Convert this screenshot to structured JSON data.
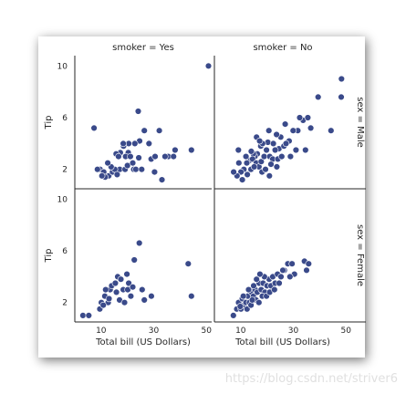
{
  "watermark": "https://blog.csdn.net/striver6",
  "colors": {
    "point": "#3a4a8a",
    "point_edge": "#ffffff",
    "axis": "#262626",
    "shadow": "#9a9a9a",
    "panel_bg": "#ffffff"
  },
  "chart_data": {
    "type": "scatter",
    "grid": false,
    "x_ticks": [
      10,
      30,
      50
    ],
    "y_ticks": [
      2,
      6,
      10
    ],
    "xlim": [
      0,
      52
    ],
    "ylim": [
      0.5,
      10.8
    ],
    "col_titles": [
      "smoker = Yes",
      "smoker = No"
    ],
    "row_titles": [
      "sex = Male",
      "sex = Female"
    ],
    "xlabel": "Total bill (US Dollars)",
    "ylabel": "Tip",
    "panels": [
      {
        "row": 0,
        "col": 0,
        "points": [
          [
            50.8,
            10.0
          ],
          [
            7.3,
            5.2
          ],
          [
            24.1,
            6.5
          ],
          [
            26.4,
            5.0
          ],
          [
            32.1,
            5.0
          ],
          [
            44.3,
            3.5
          ],
          [
            20.3,
            3.3
          ],
          [
            28.2,
            4.0
          ],
          [
            24.6,
            4.2
          ],
          [
            22.8,
            4.0
          ],
          [
            20.5,
            4.0
          ],
          [
            18.5,
            3.8
          ],
          [
            17.3,
            3.3
          ],
          [
            15.7,
            3.2
          ],
          [
            18.4,
            4.0
          ],
          [
            17.1,
            2.0
          ],
          [
            19.1,
            2.0
          ],
          [
            22.4,
            2.0
          ],
          [
            23.2,
            2.0
          ],
          [
            20.0,
            2.3
          ],
          [
            24.3,
            2.9
          ],
          [
            29.0,
            2.8
          ],
          [
            33.1,
            1.2
          ],
          [
            35.5,
            3.0
          ],
          [
            37.5,
            3.0
          ],
          [
            34.3,
            3.0
          ],
          [
            38.1,
            3.5
          ],
          [
            30.3,
            1.8
          ],
          [
            25.4,
            2.0
          ],
          [
            9.6,
            2.0
          ],
          [
            11.0,
            1.8
          ],
          [
            12.9,
            1.5
          ],
          [
            14.3,
            1.8
          ],
          [
            15.2,
            2.0
          ],
          [
            13.8,
            2.2
          ],
          [
            12.5,
            2.5
          ],
          [
            11.5,
            1.4
          ],
          [
            10.3,
            1.5
          ],
          [
            8.6,
            2.0
          ],
          [
            16.1,
            1.6
          ],
          [
            16.6,
            3.0
          ],
          [
            19.3,
            3.0
          ],
          [
            21.1,
            3.0
          ],
          [
            22.0,
            2.5
          ],
          [
            30.5,
            3.0
          ]
        ]
      },
      {
        "row": 0,
        "col": 1,
        "points": [
          [
            48.3,
            9.0
          ],
          [
            48.2,
            7.6
          ],
          [
            39.4,
            7.6
          ],
          [
            44.3,
            5.0
          ],
          [
            33.7,
            5.8
          ],
          [
            32.4,
            6.0
          ],
          [
            31.7,
            5.0
          ],
          [
            36.6,
            5.2
          ],
          [
            35.5,
            6.0
          ],
          [
            29.9,
            5.0
          ],
          [
            28.4,
            4.2
          ],
          [
            26.9,
            5.5
          ],
          [
            25.2,
            4.5
          ],
          [
            23.6,
            4.7
          ],
          [
            24.5,
            3.6
          ],
          [
            20.3,
            4.1
          ],
          [
            17.6,
            3.8
          ],
          [
            18.3,
            4.0
          ],
          [
            16.3,
            3.2
          ],
          [
            15.4,
            3.0
          ],
          [
            14.8,
            3.2
          ],
          [
            13.4,
            2.7
          ],
          [
            12.3,
            2.5
          ],
          [
            11.2,
            2.0
          ],
          [
            10.1,
            1.8
          ],
          [
            8.6,
            1.5
          ],
          [
            7.3,
            1.8
          ],
          [
            9.3,
            2.5
          ],
          [
            12.0,
            3.0
          ],
          [
            13.9,
            2.0
          ],
          [
            14.5,
            2.8
          ],
          [
            15.9,
            2.5
          ],
          [
            16.9,
            2.2
          ],
          [
            17.8,
            2.6
          ],
          [
            18.9,
            3.0
          ],
          [
            19.8,
            3.5
          ],
          [
            21.0,
            3.0
          ],
          [
            22.2,
            2.8
          ],
          [
            23.1,
            3.5
          ],
          [
            24.1,
            2.8
          ],
          [
            25.6,
            3.0
          ],
          [
            26.4,
            3.8
          ],
          [
            27.2,
            4.0
          ],
          [
            16.0,
            4.5
          ],
          [
            17.2,
            4.2
          ],
          [
            20.7,
            5.0
          ],
          [
            22.4,
            4.0
          ],
          [
            12.5,
            1.6
          ],
          [
            15.1,
            2.2
          ],
          [
            18.1,
            1.8
          ],
          [
            19.4,
            2.0
          ],
          [
            21.5,
            2.4
          ],
          [
            10.6,
            1.2
          ],
          [
            9.1,
            3.5
          ],
          [
            20.9,
            1.5
          ],
          [
            31.0,
            3.5
          ],
          [
            28.9,
            3.0
          ],
          [
            34.6,
            3.5
          ],
          [
            14.0,
            3.4
          ],
          [
            23.7,
            2.2
          ]
        ]
      },
      {
        "row": 1,
        "col": 0,
        "points": [
          [
            3.1,
            1.0
          ],
          [
            5.3,
            1.0
          ],
          [
            9.5,
            1.5
          ],
          [
            10.1,
            2.0
          ],
          [
            11.4,
            2.5
          ],
          [
            12.7,
            2.0
          ],
          [
            13.4,
            3.0
          ],
          [
            14.0,
            3.3
          ],
          [
            15.4,
            3.5
          ],
          [
            16.3,
            4.0
          ],
          [
            17.5,
            3.8
          ],
          [
            18.4,
            3.0
          ],
          [
            19.8,
            4.2
          ],
          [
            20.5,
            3.5
          ],
          [
            21.3,
            2.5
          ],
          [
            22.6,
            5.3
          ],
          [
            24.5,
            6.6
          ],
          [
            25.6,
            3.0
          ],
          [
            26.4,
            2.2
          ],
          [
            29.1,
            2.5
          ],
          [
            43.1,
            5.0
          ],
          [
            44.3,
            2.5
          ],
          [
            11.7,
            3.0
          ],
          [
            10.8,
            1.8
          ],
          [
            13.0,
            2.3
          ],
          [
            15.8,
            2.8
          ],
          [
            17.0,
            2.2
          ],
          [
            18.9,
            2.0
          ],
          [
            20.1,
            3.0
          ],
          [
            22.0,
            3.2
          ]
        ]
      },
      {
        "row": 1,
        "col": 1,
        "points": [
          [
            7.2,
            1.0
          ],
          [
            8.5,
            1.5
          ],
          [
            9.2,
            2.0
          ],
          [
            10.1,
            1.5
          ],
          [
            10.6,
            2.3
          ],
          [
            11.3,
            1.8
          ],
          [
            12.0,
            2.0
          ],
          [
            12.7,
            2.5
          ],
          [
            13.3,
            2.0
          ],
          [
            14.1,
            2.8
          ],
          [
            14.8,
            2.5
          ],
          [
            15.5,
            3.0
          ],
          [
            16.3,
            2.8
          ],
          [
            17.0,
            3.5
          ],
          [
            17.8,
            3.0
          ],
          [
            18.5,
            3.5
          ],
          [
            19.2,
            2.8
          ],
          [
            20.0,
            3.3
          ],
          [
            20.8,
            3.8
          ],
          [
            21.5,
            3.3
          ],
          [
            22.2,
            4.0
          ],
          [
            23.1,
            3.5
          ],
          [
            24.0,
            4.2
          ],
          [
            25.3,
            4.0
          ],
          [
            26.6,
            4.5
          ],
          [
            27.9,
            5.0
          ],
          [
            29.5,
            5.0
          ],
          [
            30.4,
            4.2
          ],
          [
            34.2,
            5.2
          ],
          [
            35.8,
            5.0
          ],
          [
            35.0,
            4.5
          ],
          [
            12.4,
            1.5
          ],
          [
            13.9,
            1.8
          ],
          [
            15.8,
            2.2
          ],
          [
            16.9,
            2.0
          ],
          [
            18.2,
            2.5
          ],
          [
            19.8,
            2.5
          ],
          [
            11.0,
            2.5
          ],
          [
            13.0,
            3.0
          ],
          [
            14.9,
            3.3
          ],
          [
            16.0,
            3.8
          ],
          [
            19.0,
            4.0
          ],
          [
            21.0,
            2.8
          ],
          [
            9.8,
            1.7
          ],
          [
            17.3,
            4.2
          ],
          [
            22.8,
            3.0
          ],
          [
            24.6,
            3.5
          ],
          [
            28.7,
            4.0
          ],
          [
            14.4,
            2.2
          ],
          [
            26.0,
            4.5
          ]
        ]
      }
    ]
  }
}
